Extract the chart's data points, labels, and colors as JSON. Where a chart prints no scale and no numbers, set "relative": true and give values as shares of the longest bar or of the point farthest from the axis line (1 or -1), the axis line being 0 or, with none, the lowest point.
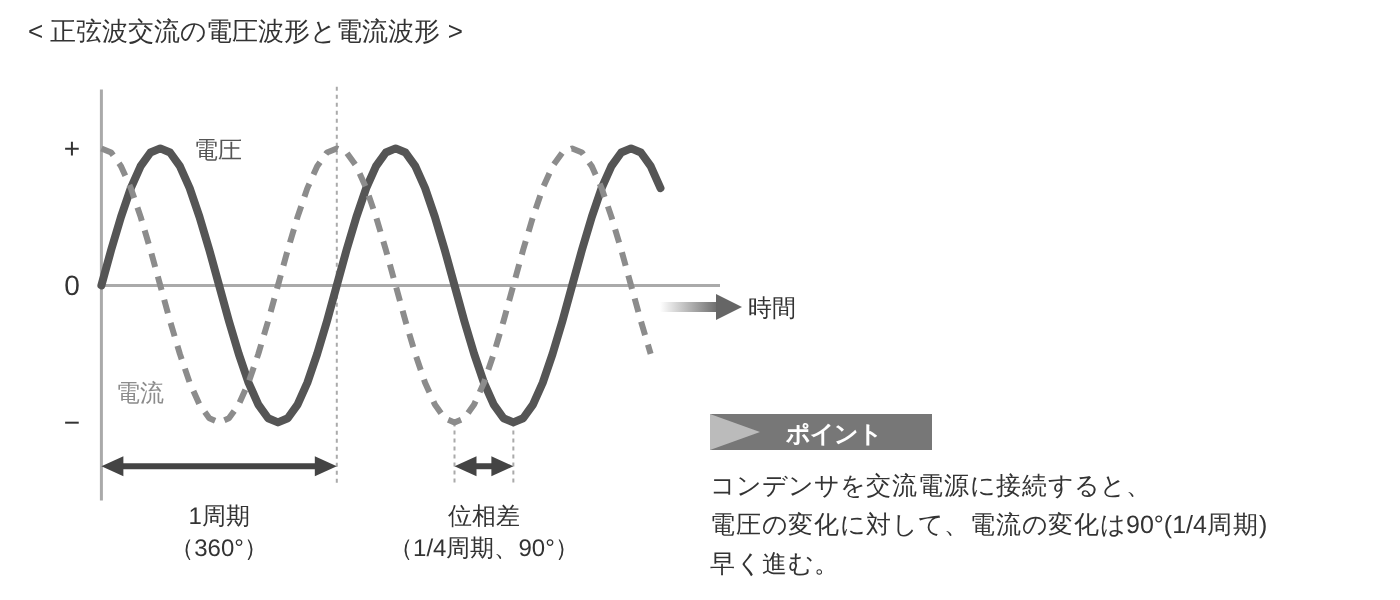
{
  "chart_data": {
    "type": "line",
    "title": "< 正弦波交流の電圧波形と電流波形 >",
    "xlabel": "時間",
    "relative": true,
    "categories": [
      null,
      null,
      null,
      null,
      null,
      null,
      null,
      null,
      null,
      null,
      null,
      null,
      null,
      null,
      null,
      null,
      null,
      null,
      null,
      null,
      null,
      null,
      null,
      null,
      null,
      null,
      null,
      null,
      null,
      null,
      null,
      null,
      null,
      null,
      null,
      null,
      null,
      null,
      null,
      null,
      null,
      null,
      null,
      null,
      null,
      null,
      null,
      null,
      null,
      null,
      null,
      null,
      null,
      null,
      null,
      null,
      null,
      null
    ],
    "series": [
      {
        "name": "電圧",
        "color": "#555555",
        "line_style": "solid",
        "values": [
          0,
          0.26,
          0.5,
          0.71,
          0.87,
          0.97,
          1,
          0.97,
          0.87,
          0.71,
          0.5,
          0.26,
          0,
          -0.26,
          -0.5,
          -0.71,
          -0.87,
          -0.97,
          -1,
          -0.97,
          -0.87,
          -0.71,
          -0.5,
          -0.26,
          0,
          0.26,
          0.5,
          0.71,
          0.87,
          0.97,
          1,
          0.97,
          0.87,
          0.71,
          0.5,
          0.26,
          0,
          -0.26,
          -0.5,
          -0.71,
          -0.87,
          -0.97,
          -1,
          -0.97,
          -0.87,
          -0.71,
          -0.5,
          -0.26,
          0,
          0.26,
          0.5,
          0.71,
          0.87,
          0.97,
          1,
          0.97,
          0.87,
          0.71
        ]
      },
      {
        "name": "電流",
        "color": "#8c8c8c",
        "line_style": "dashed",
        "values": [
          1,
          0.97,
          0.87,
          0.71,
          0.5,
          0.26,
          0,
          -0.26,
          -0.5,
          -0.71,
          -0.87,
          -0.97,
          -1,
          -0.97,
          -0.87,
          -0.71,
          -0.5,
          -0.26,
          0,
          0.26,
          0.5,
          0.71,
          0.87,
          0.97,
          1,
          0.97,
          0.87,
          0.71,
          0.5,
          0.26,
          0,
          -0.26,
          -0.5,
          -0.71,
          -0.87,
          -0.97,
          -1,
          -0.97,
          -0.87,
          -0.71,
          -0.5,
          -0.26,
          0,
          0.26,
          0.5,
          0.71,
          0.87,
          0.97,
          1,
          0.97,
          0.87,
          0.71,
          0.5,
          0.26,
          0,
          -0.26,
          -0.5,
          null
        ]
      }
    ],
    "annotations": [
      "+",
      "0",
      "−",
      "1周期",
      "（360°）",
      "位相差",
      "（1/4周期、90°）",
      "ポイント",
      "コンデンサを交流電源に接続すると、",
      "電圧の変化に対して、電流の変化は90°(1/4周期)",
      "早く進む。"
    ]
  }
}
